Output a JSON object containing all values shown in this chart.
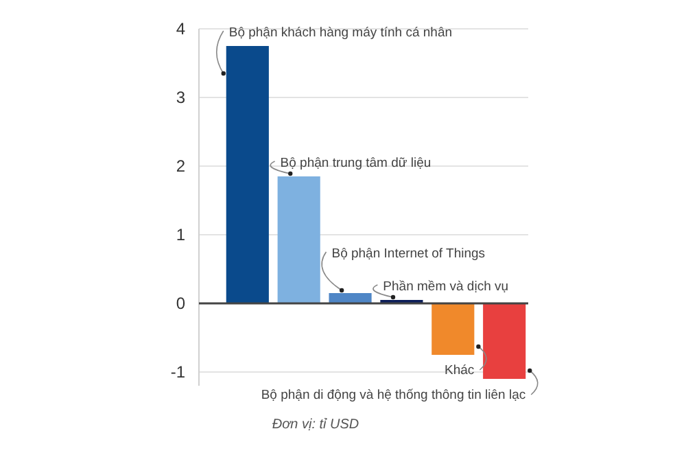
{
  "chart_data": {
    "type": "bar",
    "categories": [
      null,
      null,
      null,
      null,
      null,
      null
    ],
    "values": [
      3.75,
      1.85,
      0.15,
      0.05,
      -0.75,
      -1.1
    ],
    "colors": [
      "#0a4a8c",
      "#7eb1e0",
      "#4f86c6",
      "#0d1f5a",
      "#f0892b",
      "#e8403f"
    ],
    "ylim": [
      -1.2,
      4
    ],
    "yticks": [
      -1,
      0,
      1,
      2,
      3,
      4
    ],
    "grid": "y",
    "tick_labels": "y",
    "annotations": [
      "Bộ phận khách hàng máy tính cá nhân",
      "Bộ phận trung tâm dữ liệu",
      {
        "text": "Bộ phận Internet of Things",
        "y": 0.15
      },
      {
        "text": "Phần mềm và dịch vụ",
        "y": 0.05
      },
      {
        "text": "Khác",
        "y": -0.75
      },
      "Bộ phận di động và hệ thống thông tin liên lạc",
      "Đơn vị: tỉ USD"
    ]
  }
}
